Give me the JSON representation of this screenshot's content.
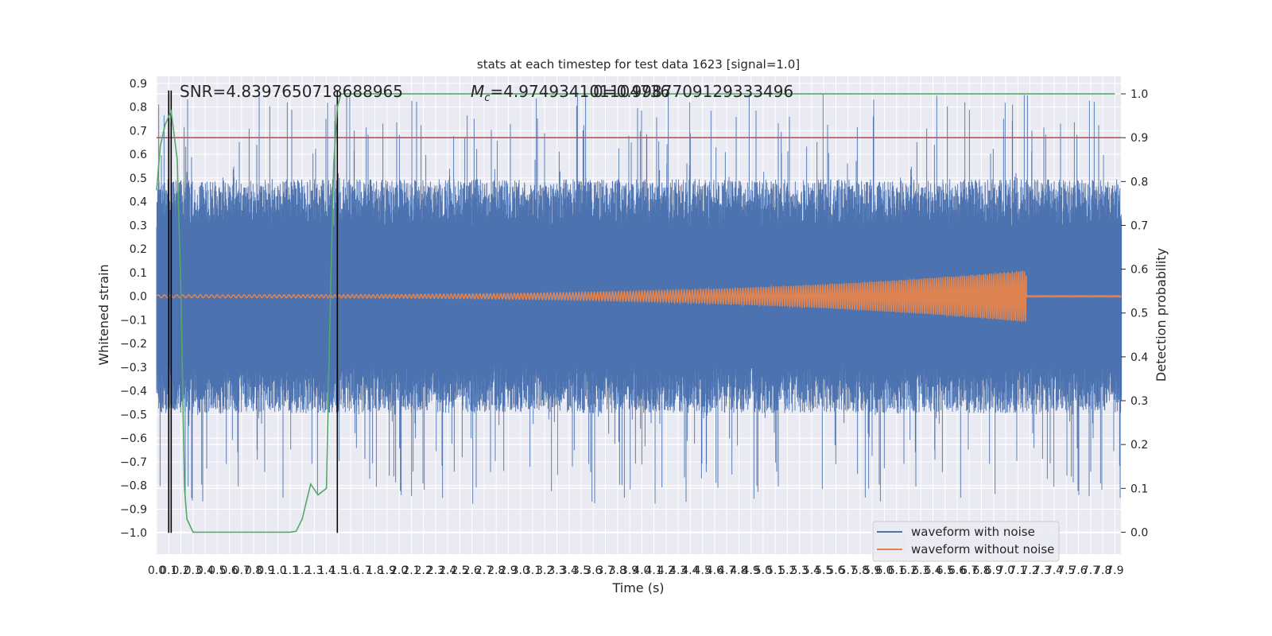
{
  "chart_data": {
    "type": "line",
    "title": "stats at each timestep for test data 1623 [signal=1.0]",
    "xlabel": "Time (s)",
    "ylabel_left": "Whitened strain",
    "ylabel_right": "Detection probability",
    "xlim": [
      0.0,
      7.95
    ],
    "ylim_left": [
      -1.09,
      0.93
    ],
    "ylim_right": [
      -0.05,
      1.04
    ],
    "x_ticks": [
      "0.0",
      "0.1",
      "0.2",
      "0.3",
      "0.4",
      "0.5",
      "0.6",
      "0.7",
      "0.8",
      "0.9",
      "1.0",
      "1.1",
      "1.2",
      "1.3",
      "1.4",
      "1.5",
      "1.6",
      "1.7",
      "1.8",
      "1.9",
      "2.0",
      "2.1",
      "2.2",
      "2.3",
      "2.4",
      "2.5",
      "2.6",
      "2.7",
      "2.8",
      "2.9",
      "3.0",
      "3.1",
      "3.2",
      "3.3",
      "3.4",
      "3.5",
      "3.6",
      "3.7",
      "3.8",
      "3.9",
      "4.0",
      "4.1",
      "4.2",
      "4.3",
      "4.4",
      "4.5",
      "4.6",
      "4.7",
      "4.8",
      "4.9",
      "5.0",
      "5.1",
      "5.2",
      "5.3",
      "5.4",
      "5.5",
      "5.6",
      "5.7",
      "5.8",
      "5.9",
      "6.0",
      "6.1",
      "6.2",
      "6.3",
      "6.4",
      "6.5",
      "6.6",
      "6.7",
      "6.8",
      "6.9",
      "7.0",
      "7.1",
      "7.2",
      "7.3",
      "7.4",
      "7.5",
      "7.6",
      "7.7",
      "7.8",
      "7.9"
    ],
    "y_ticks_left": [
      "0.9",
      "0.8",
      "0.7",
      "0.6",
      "0.5",
      "0.4",
      "0.3",
      "0.2",
      "0.1",
      "0.0",
      "−0.1",
      "−0.2",
      "−0.3",
      "−0.4",
      "−0.5",
      "−0.6",
      "−0.7",
      "−0.8",
      "−0.9",
      "−1.0"
    ],
    "y_ticks_right": [
      "1.0",
      "0.9",
      "0.8",
      "0.7",
      "0.6",
      "0.5",
      "0.4",
      "0.3",
      "0.2",
      "0.1",
      "0.0"
    ],
    "annotations": {
      "snr": "SNR=4.8397650718688965",
      "mc_prefix": "M",
      "mc_sub": "c",
      "mc_value": "=4.974934101104736",
      "overlap": "0=0.9987709129333496"
    },
    "series": [
      {
        "name": "waveform with noise",
        "color": "#4c72b0",
        "kind": "noise",
        "amplitude_typical": 0.45,
        "amplitude_peak": 0.86
      },
      {
        "name": "waveform without noise",
        "color": "#dd8452",
        "kind": "chirp",
        "amplitude_start": 0.006,
        "amplitude_end": 0.11,
        "merger_time": 7.17
      },
      {
        "name": "detection probability",
        "color": "#55a868",
        "axis": "right",
        "x": [
          0.0,
          0.03,
          0.07,
          0.12,
          0.17,
          0.2,
          0.23,
          0.25,
          0.3,
          0.4,
          0.6,
          0.8,
          1.0,
          1.1,
          1.15,
          1.2,
          1.27,
          1.33,
          1.4,
          1.43,
          1.46,
          1.49,
          1.52,
          1.6,
          2.0,
          3.0,
          4.0,
          5.0,
          6.0,
          7.0,
          7.9
        ],
        "y": [
          0.78,
          0.88,
          0.93,
          0.96,
          0.85,
          0.55,
          0.1,
          0.03,
          0.0,
          0.0,
          0.0,
          0.0,
          0.0,
          0.0,
          0.002,
          0.03,
          0.11,
          0.085,
          0.1,
          0.5,
          0.84,
          0.97,
          1.0,
          1.0,
          1.0,
          1.0,
          1.0,
          1.0,
          1.0,
          1.0,
          1.0
        ]
      }
    ],
    "threshold": {
      "value": 0.9,
      "axis": "right",
      "color": "#c44e52"
    },
    "vertical_lines": [
      {
        "x": 0.1,
        "color": "#000000"
      },
      {
        "x": 0.12,
        "color": "#000000"
      },
      {
        "x": 1.49,
        "color": "#000000"
      }
    ],
    "legend": {
      "placement": "lower-right",
      "entries": [
        "waveform with noise",
        "waveform without noise"
      ]
    },
    "grid": true,
    "background": "#eaeaf2"
  }
}
